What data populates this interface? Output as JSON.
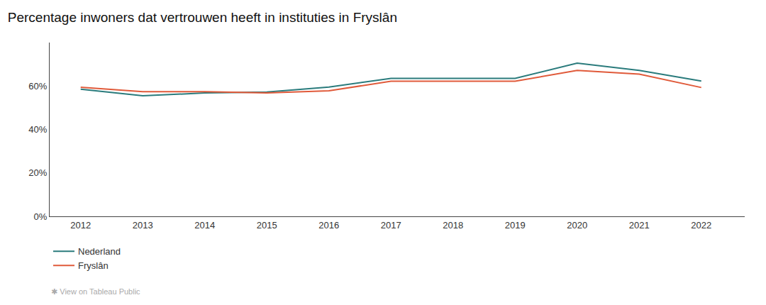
{
  "chart_data": {
    "type": "line",
    "title": "Percentage inwoners dat vertrouwen heeft in instituties in Fryslân",
    "x": [
      2012,
      2013,
      2014,
      2015,
      2016,
      2017,
      2018,
      2019,
      2020,
      2021,
      2022
    ],
    "series": [
      {
        "name": "Nederland",
        "color": "#2a7b7c",
        "values": [
          0.585,
          0.555,
          0.568,
          0.572,
          0.595,
          0.635,
          0.635,
          0.635,
          0.705,
          0.672,
          0.623
        ]
      },
      {
        "name": "Fryslân",
        "color": "#e05a3a",
        "values": [
          0.594,
          0.574,
          0.574,
          0.568,
          0.578,
          0.622,
          0.622,
          0.622,
          0.672,
          0.655,
          0.593
        ]
      }
    ],
    "xlim": [
      2011.5,
      2022.7
    ],
    "xticks": [
      2012,
      2013,
      2014,
      2015,
      2016,
      2017,
      2018,
      2019,
      2020,
      2021,
      2022
    ],
    "ylim": [
      0,
      0.8
    ],
    "yticks": [
      {
        "value": 0.0,
        "label": "0%"
      },
      {
        "value": 0.2,
        "label": "20%"
      },
      {
        "value": 0.4,
        "label": "40%"
      },
      {
        "value": 0.6,
        "label": "60%"
      }
    ],
    "grid": false,
    "legend": "bottom left",
    "annotations": [
      "✱ View on Tableau Public"
    ]
  }
}
